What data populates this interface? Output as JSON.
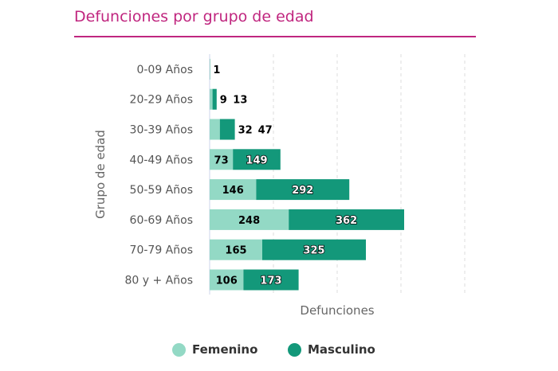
{
  "chart_data": {
    "type": "bar",
    "orientation": "horizontal",
    "stacked": true,
    "title": "Defunciones por grupo de edad",
    "xlabel": "Defunciones",
    "ylabel": "Grupo de edad",
    "categories": [
      "0-09 Años",
      "20-29 Años",
      "30-39 Años",
      "40-49 Años",
      "50-59 Años",
      "60-69 Años",
      "70-79 Años",
      "80 y + Años"
    ],
    "series": [
      {
        "name": "Femenino",
        "color": "#93d9c5",
        "values": [
          0,
          9,
          32,
          73,
          146,
          248,
          165,
          106
        ]
      },
      {
        "name": "Masculino",
        "color": "#13987a",
        "values": [
          1,
          13,
          47,
          149,
          292,
          362,
          325,
          173
        ]
      }
    ],
    "xlim": [
      0,
      800
    ],
    "grid": true,
    "legend": "bottom"
  }
}
